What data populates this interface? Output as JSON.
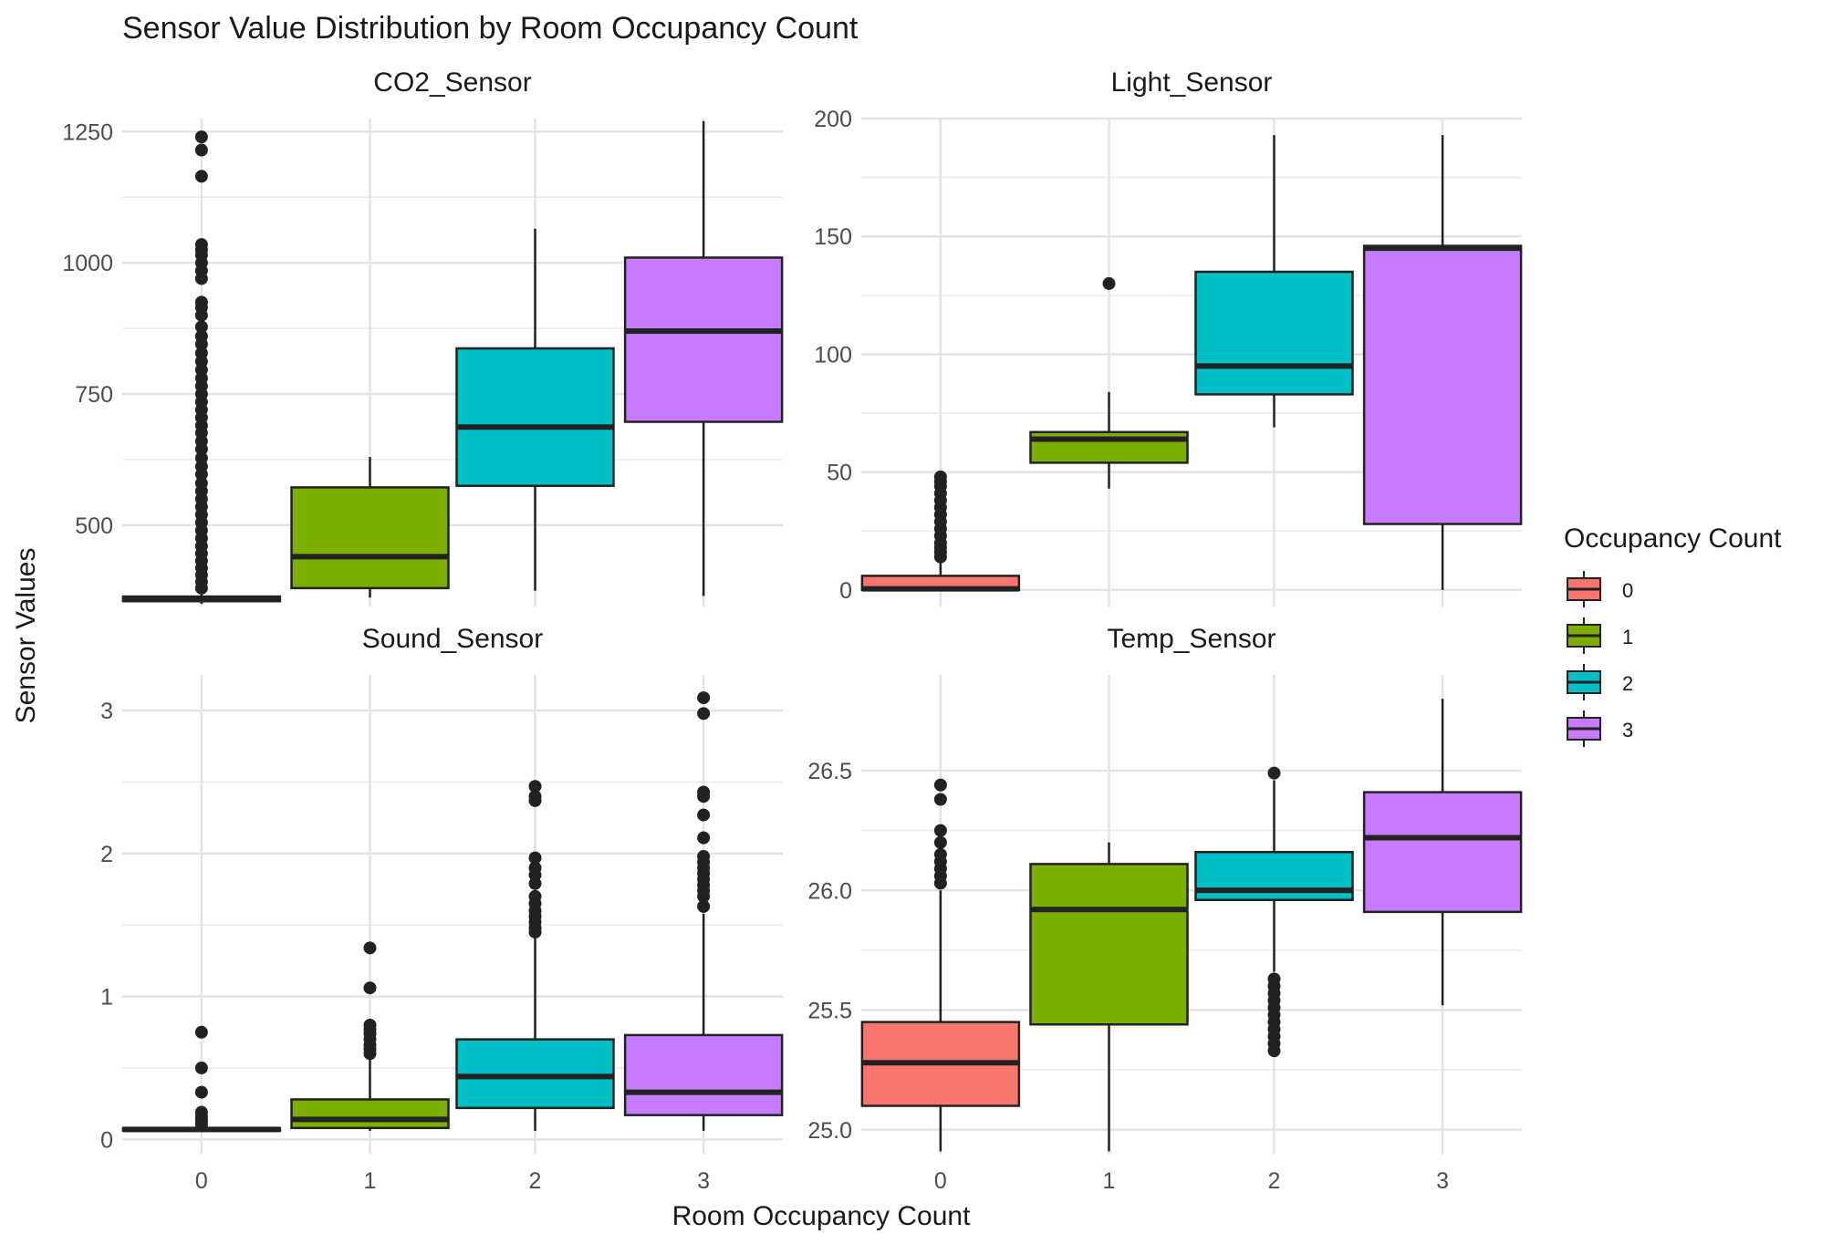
{
  "chart_data": {
    "type": "boxplot",
    "title": "Sensor Value Distribution by Room Occupancy Count",
    "xlabel": "Room Occupancy Count",
    "ylabel": "Sensor Values",
    "categories": [
      "0",
      "1",
      "2",
      "3"
    ],
    "legend": {
      "title": "Occupancy Count",
      "placement": "right",
      "entries": [
        {
          "label": "0",
          "color": "#F8766D"
        },
        {
          "label": "1",
          "color": "#7CAE00"
        },
        {
          "label": "2",
          "color": "#00BFC4"
        },
        {
          "label": "3",
          "color": "#C77CFF"
        }
      ]
    },
    "grid": true,
    "panels": [
      {
        "name": "CO2_Sensor",
        "ylim": [
          345,
          1275
        ],
        "yticks": [
          500,
          750,
          1000,
          1250
        ],
        "yticklabels": [
          "500",
          "750",
          "1000",
          "1250"
        ],
        "boxes": [
          {
            "category": "0",
            "q1": 355,
            "median": 358,
            "q3": 364,
            "whisker_low": 350,
            "whisker_high": 369,
            "outliers": [
              380,
              392,
              405,
              418,
              432,
              446,
              460,
              475,
              490,
              505,
              520,
              535,
              550,
              565,
              580,
              597,
              612,
              628,
              645,
              660,
              676,
              690,
              705,
              720,
              735,
              750,
              765,
              780,
              796,
              812,
              828,
              845,
              860,
              878,
              900,
              915,
              925,
              970,
              985,
              1000,
              1015,
              1025,
              1035,
              1165,
              1215,
              1240
            ]
          },
          {
            "category": "1",
            "q1": 380,
            "median": 440,
            "q3": 572,
            "whisker_low": 362,
            "whisker_high": 630,
            "outliers": []
          },
          {
            "category": "2",
            "q1": 575,
            "median": 687,
            "q3": 837,
            "whisker_low": 375,
            "whisker_high": 1065,
            "outliers": []
          },
          {
            "category": "3",
            "q1": 697,
            "median": 870,
            "q3": 1010,
            "whisker_low": 365,
            "whisker_high": 1270,
            "outliers": []
          }
        ]
      },
      {
        "name": "Light_Sensor",
        "ylim": [
          -7,
          200
        ],
        "yticks": [
          0,
          50,
          100,
          150,
          200
        ],
        "yticklabels": [
          "0",
          "50",
          "100",
          "150",
          "200"
        ],
        "boxes": [
          {
            "category": "0",
            "q1": 0,
            "median": 0.5,
            "q3": 6,
            "whisker_low": 0,
            "whisker_high": 13,
            "outliers": [
              14,
              16,
              18,
              20,
              23,
              26,
              29,
              32,
              35,
              38,
              41,
              44,
              46,
              48
            ]
          },
          {
            "category": "1",
            "q1": 54,
            "median": 64,
            "q3": 67,
            "whisker_low": 43,
            "whisker_high": 84,
            "outliers": [
              130
            ]
          },
          {
            "category": "2",
            "q1": 83,
            "median": 95,
            "q3": 135,
            "whisker_low": 69,
            "whisker_high": 193,
            "outliers": []
          },
          {
            "category": "3",
            "q1": 28,
            "median": 145,
            "q3": 146,
            "whisker_low": 0,
            "whisker_high": 193,
            "outliers": []
          }
        ]
      },
      {
        "name": "Sound_Sensor",
        "ylim": [
          -0.1,
          3.25
        ],
        "yticks": [
          0,
          1,
          2,
          3
        ],
        "yticklabels": [
          "0",
          "1",
          "2",
          "3"
        ],
        "boxes": [
          {
            "category": "0",
            "q1": 0.06,
            "median": 0.07,
            "q3": 0.08,
            "whisker_low": 0.05,
            "whisker_high": 0.09,
            "outliers": [
              0.1,
              0.12,
              0.14,
              0.16,
              0.19,
              0.33,
              0.5,
              0.75
            ]
          },
          {
            "category": "1",
            "q1": 0.08,
            "median": 0.14,
            "q3": 0.28,
            "whisker_low": 0.06,
            "whisker_high": 0.58,
            "outliers": [
              0.6,
              0.63,
              0.66,
              0.7,
              0.74,
              0.77,
              0.8,
              1.06,
              1.34
            ]
          },
          {
            "category": "2",
            "q1": 0.22,
            "median": 0.44,
            "q3": 0.7,
            "whisker_low": 0.06,
            "whisker_high": 1.42,
            "outliers": [
              1.45,
              1.48,
              1.52,
              1.56,
              1.6,
              1.65,
              1.7,
              1.79,
              1.85,
              1.9,
              1.97,
              2.37,
              2.4,
              2.47
            ]
          },
          {
            "category": "3",
            "q1": 0.17,
            "median": 0.33,
            "q3": 0.73,
            "whisker_low": 0.06,
            "whisker_high": 1.58,
            "outliers": [
              1.63,
              1.7,
              1.74,
              1.78,
              1.82,
              1.86,
              1.9,
              1.94,
              1.98,
              2.11,
              2.27,
              2.4,
              2.43,
              2.98,
              3.09
            ]
          }
        ]
      },
      {
        "name": "Temp_Sensor",
        "ylim": [
          24.9,
          26.9
        ],
        "yticks": [
          25.0,
          25.5,
          26.0,
          26.5
        ],
        "yticklabels": [
          "25.0",
          "25.5",
          "26.0",
          "26.5"
        ],
        "boxes": [
          {
            "category": "0",
            "q1": 25.1,
            "median": 25.28,
            "q3": 25.45,
            "whisker_low": 24.91,
            "whisker_high": 26.0,
            "outliers": [
              26.03,
              26.06,
              26.09,
              26.12,
              26.15,
              26.2,
              26.25,
              26.38,
              26.44
            ]
          },
          {
            "category": "1",
            "q1": 25.44,
            "median": 25.92,
            "q3": 26.11,
            "whisker_low": 24.91,
            "whisker_high": 26.2,
            "outliers": []
          },
          {
            "category": "2",
            "q1": 25.96,
            "median": 26.0,
            "q3": 26.16,
            "whisker_low": 25.66,
            "whisker_high": 26.46,
            "outliers": [
              25.33,
              25.36,
              25.39,
              25.42,
              25.45,
              25.48,
              25.51,
              25.54,
              25.57,
              25.6,
              25.63,
              26.49
            ]
          },
          {
            "category": "3",
            "q1": 25.91,
            "median": 26.22,
            "q3": 26.41,
            "whisker_low": 25.52,
            "whisker_high": 26.8,
            "outliers": []
          }
        ]
      }
    ]
  }
}
